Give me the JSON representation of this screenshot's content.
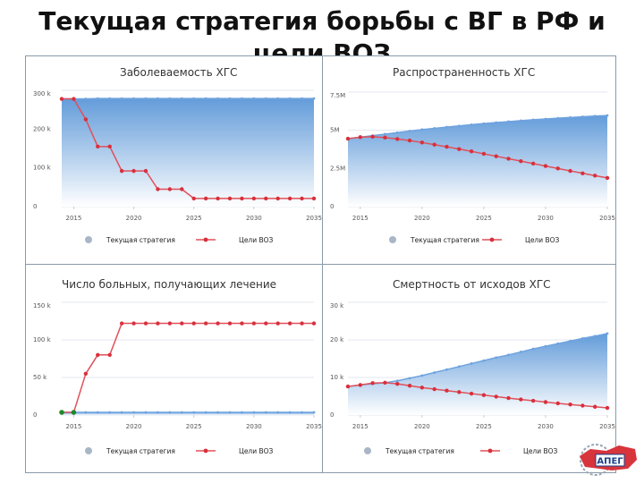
{
  "slide": {
    "title_line1": "Текущая стратегия борьбы с ВГ в РФ и",
    "title_line2": "цели ВОЗ"
  },
  "legend": {
    "current": "Текущая стратегия",
    "who": "Цели ВОЗ"
  },
  "colors": {
    "area_top": "#5b97d8",
    "area_bottom": "#ffffff",
    "area_line": "#6fa3de",
    "who_line": "#e0505a",
    "who_marker": "#d8303c",
    "green_marker": "#1f8a2a",
    "legend_grey": "#a9b6c6",
    "frame": "#8a9aa8"
  },
  "logo": {
    "text": "АПЕГ"
  },
  "chart_data": [
    {
      "type": "area",
      "title": "Заболеваемость ХГС",
      "x_ticks": [
        "2015",
        "2020",
        "2025",
        "2030",
        "2035"
      ],
      "y_ticks": [
        "0",
        "100 k",
        "200 k",
        "300 k"
      ],
      "xlim": [
        2015,
        2035
      ],
      "ylim": [
        0,
        300000
      ],
      "years": [
        2014,
        2015,
        2016,
        2017,
        2018,
        2019,
        2020,
        2021,
        2022,
        2023,
        2024,
        2025,
        2026,
        2027,
        2028,
        2029,
        2030,
        2031,
        2032,
        2033,
        2034,
        2035
      ],
      "series": [
        {
          "name": "Текущая стратегия",
          "values": [
            278000,
            278000,
            278000,
            279000,
            279000,
            279000,
            279000,
            279000,
            279000,
            279000,
            279000,
            279000,
            279000,
            279000,
            279000,
            279000,
            279000,
            279000,
            279000,
            279000,
            279000,
            279000
          ]
        },
        {
          "name": "Цели ВОЗ",
          "values": [
            278000,
            278000,
            225000,
            155000,
            155000,
            92000,
            92000,
            92000,
            45000,
            45000,
            45000,
            21000,
            21000,
            21000,
            21000,
            21000,
            21000,
            21000,
            21000,
            21000,
            21000,
            21000
          ]
        }
      ]
    },
    {
      "type": "area",
      "title": "Распространенность ХГС",
      "x_ticks": [
        "2015",
        "2020",
        "2025",
        "2030",
        "2035"
      ],
      "y_ticks": [
        "0",
        "2.5M",
        "5M",
        "7.5M"
      ],
      "xlim": [
        2015,
        2035
      ],
      "ylim": [
        0,
        7500000
      ],
      "years": [
        2014,
        2015,
        2016,
        2017,
        2018,
        2019,
        2020,
        2021,
        2022,
        2023,
        2024,
        2025,
        2026,
        2027,
        2028,
        2029,
        2030,
        2031,
        2032,
        2033,
        2034,
        2035
      ],
      "series": [
        {
          "name": "Текущая стратегия",
          "values": [
            4450000,
            4550000,
            4650000,
            4750000,
            4850000,
            4950000,
            5050000,
            5130000,
            5210000,
            5290000,
            5370000,
            5440000,
            5510000,
            5570000,
            5630000,
            5690000,
            5740000,
            5790000,
            5840000,
            5890000,
            5930000,
            5970000
          ]
        },
        {
          "name": "Цели ВОЗ",
          "values": [
            4450000,
            4550000,
            4580000,
            4520000,
            4430000,
            4330000,
            4200000,
            4060000,
            3920000,
            3770000,
            3620000,
            3460000,
            3300000,
            3140000,
            2980000,
            2820000,
            2660000,
            2500000,
            2340000,
            2180000,
            2030000,
            1880000
          ]
        }
      ]
    },
    {
      "type": "area",
      "title": "Число больных, получающих лечение",
      "x_ticks": [
        "2015",
        "2020",
        "2025",
        "2030",
        "2035"
      ],
      "y_ticks": [
        "0",
        "50 k",
        "100 k",
        "150 k"
      ],
      "xlim": [
        2015,
        2035
      ],
      "ylim": [
        0,
        150000
      ],
      "years": [
        2014,
        2015,
        2016,
        2017,
        2018,
        2019,
        2020,
        2021,
        2022,
        2023,
        2024,
        2025,
        2026,
        2027,
        2028,
        2029,
        2030,
        2031,
        2032,
        2033,
        2034,
        2035
      ],
      "series": [
        {
          "name": "Текущая стратегия",
          "values": [
            3500,
            3500,
            3500,
            3500,
            3500,
            3500,
            3500,
            3500,
            3500,
            3500,
            3500,
            3500,
            3500,
            3500,
            3500,
            3500,
            3500,
            3500,
            3500,
            3500,
            3500,
            3500
          ]
        },
        {
          "name": "Цели ВОЗ",
          "values": [
            3500,
            3500,
            55000,
            80000,
            80000,
            122000,
            122000,
            122000,
            122000,
            122000,
            122000,
            122000,
            122000,
            122000,
            122000,
            122000,
            122000,
            122000,
            122000,
            122000,
            122000,
            122000
          ]
        }
      ]
    },
    {
      "type": "area",
      "title": "Смертность от исходов ХГС",
      "x_ticks": [
        "2015",
        "2020",
        "2025",
        "2030",
        "2035"
      ],
      "y_ticks": [
        "0",
        "10 k",
        "20 k",
        "30 k"
      ],
      "xlim": [
        2015,
        2035
      ],
      "ylim": [
        0,
        30000
      ],
      "years": [
        2014,
        2015,
        2016,
        2017,
        2018,
        2019,
        2020,
        2021,
        2022,
        2023,
        2024,
        2025,
        2026,
        2027,
        2028,
        2029,
        2030,
        2031,
        2032,
        2033,
        2034,
        2035
      ],
      "series": [
        {
          "name": "Текущая стратегия",
          "values": [
            7600,
            8000,
            8300,
            8600,
            9100,
            9800,
            10500,
            11300,
            12100,
            12900,
            13700,
            14500,
            15300,
            16000,
            16800,
            17600,
            18300,
            19000,
            19700,
            20400,
            21000,
            21700
          ]
        },
        {
          "name": "Цели ВОЗ",
          "values": [
            7600,
            8000,
            8500,
            8600,
            8300,
            7800,
            7300,
            6900,
            6500,
            6100,
            5700,
            5300,
            4900,
            4500,
            4150,
            3800,
            3450,
            3100,
            2800,
            2500,
            2200,
            1900
          ]
        }
      ]
    }
  ]
}
